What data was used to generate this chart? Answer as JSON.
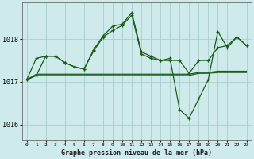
{
  "title": "Graphe pression niveau de la mer (hPa)",
  "bg_color": "#ceeaea",
  "grid_color": "#aacece",
  "line_color": "#1a5c1a",
  "series1": {
    "x": [
      0,
      1,
      2,
      3,
      4,
      5,
      6,
      7,
      8,
      9,
      10,
      11,
      12,
      13,
      14,
      15,
      16,
      17,
      18,
      19,
      20,
      21,
      22,
      23
    ],
    "y": [
      1017.05,
      1017.55,
      1017.6,
      1017.6,
      1017.45,
      1017.35,
      1017.3,
      1017.72,
      1018.05,
      1018.2,
      1018.32,
      1018.56,
      1017.65,
      1017.55,
      1017.5,
      1017.5,
      1017.5,
      1017.2,
      1017.5,
      1017.5,
      1017.8,
      1017.85,
      1018.05,
      1017.85
    ]
  },
  "series2": {
    "x": [
      0,
      1,
      2,
      3,
      4,
      5,
      6,
      7,
      8,
      9,
      10,
      11,
      12,
      13,
      14,
      15,
      16,
      17,
      18,
      19,
      20,
      21,
      22,
      23
    ],
    "y": [
      1017.05,
      1017.18,
      1017.18,
      1017.18,
      1017.18,
      1017.18,
      1017.18,
      1017.18,
      1017.18,
      1017.18,
      1017.18,
      1017.18,
      1017.18,
      1017.18,
      1017.18,
      1017.18,
      1017.18,
      1017.18,
      1017.22,
      1017.22,
      1017.25,
      1017.25,
      1017.25,
      1017.25
    ]
  },
  "series3": {
    "x": [
      0,
      1,
      2,
      3,
      4,
      5,
      6,
      7,
      8,
      9,
      10,
      11,
      12,
      13,
      14,
      15,
      16,
      17,
      18,
      19,
      20,
      21,
      22,
      23
    ],
    "y": [
      1017.05,
      1017.15,
      1017.15,
      1017.15,
      1017.15,
      1017.15,
      1017.15,
      1017.15,
      1017.15,
      1017.15,
      1017.15,
      1017.15,
      1017.15,
      1017.15,
      1017.15,
      1017.15,
      1017.15,
      1017.15,
      1017.2,
      1017.2,
      1017.22,
      1017.22,
      1017.22,
      1017.22
    ]
  },
  "series4": {
    "x": [
      0,
      1,
      2,
      3,
      4,
      5,
      6,
      7,
      8,
      9,
      10,
      11,
      12,
      13,
      14,
      15,
      16,
      17,
      18,
      19,
      20,
      21,
      22,
      23
    ],
    "y": [
      1017.05,
      1017.15,
      1017.6,
      1017.6,
      1017.45,
      1017.35,
      1017.3,
      1017.75,
      1018.08,
      1018.3,
      1018.35,
      1018.62,
      1017.7,
      1017.6,
      1017.5,
      1017.55,
      1016.35,
      1016.15,
      1016.6,
      1017.05,
      1018.18,
      1017.8,
      1018.05,
      1017.85
    ]
  },
  "yticks": [
    1016,
    1017,
    1018
  ],
  "xticks": [
    0,
    1,
    2,
    3,
    4,
    5,
    6,
    7,
    8,
    9,
    10,
    11,
    12,
    13,
    14,
    15,
    16,
    17,
    18,
    19,
    20,
    21,
    22,
    23
  ],
  "ylim": [
    1015.65,
    1018.85
  ],
  "xlim": [
    -0.5,
    23.5
  ]
}
